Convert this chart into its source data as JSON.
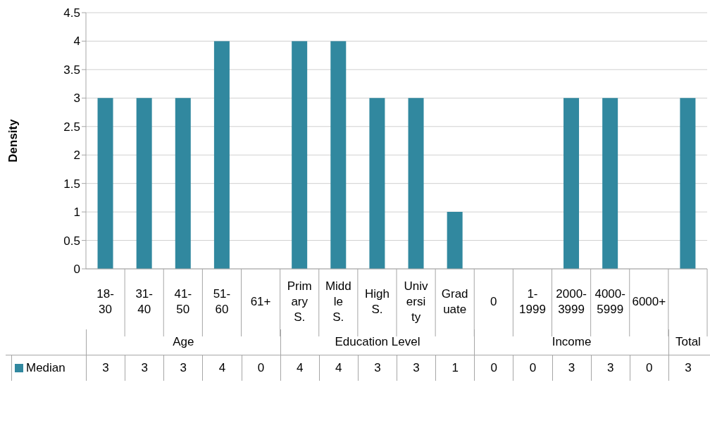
{
  "chart_data": {
    "type": "bar",
    "ylabel": "Density",
    "categories": [
      "18-30",
      "31-40",
      "41-50",
      "51-60",
      "61+",
      "Primary S.",
      "Middle S.",
      "High S.",
      "University",
      "Graduate",
      "0",
      "1-1999",
      "2000-3999",
      "4000-5999",
      "6000+",
      null
    ],
    "series": [
      {
        "name": "Median",
        "color": "#31889f",
        "values": [
          3,
          3,
          3,
          4,
          0,
          4,
          4,
          3,
          3,
          1,
          0,
          0,
          3,
          3,
          0,
          3
        ]
      }
    ],
    "ylim": [
      0,
      4.5
    ],
    "yticks": [
      0,
      0.5,
      1,
      1.5,
      2,
      2.5,
      3,
      3.5,
      4,
      4.5
    ],
    "grid": "y",
    "legend": "bottom",
    "data_labels": true,
    "annotations": [
      "Age",
      "Education Level",
      "Income",
      "Total"
    ]
  }
}
